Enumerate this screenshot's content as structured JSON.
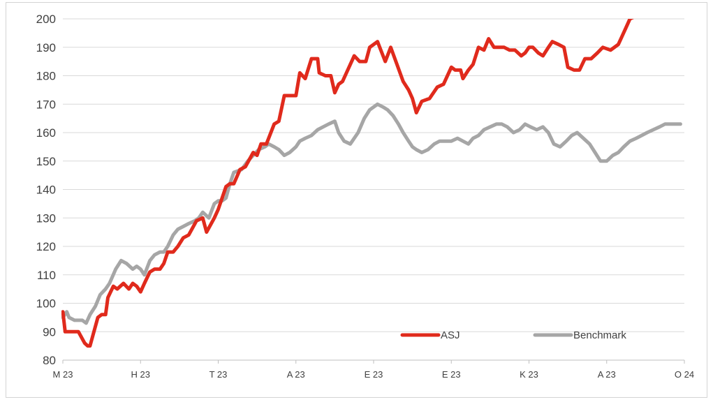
{
  "chart_data": {
    "type": "line",
    "title": "",
    "xlabel": "",
    "ylabel": "",
    "ylim": [
      80,
      200
    ],
    "yticks": [
      80,
      90,
      100,
      110,
      120,
      130,
      140,
      150,
      160,
      170,
      180,
      190,
      200
    ],
    "xtick_labels": [
      "M 23",
      "H 23",
      "T 23",
      "A 23",
      "E 23",
      "E 23",
      "K 23",
      "A 23",
      "O 24"
    ],
    "x_domain": [
      0,
      8
    ],
    "grid": "horizontal",
    "legend_position": "bottom-right",
    "series": [
      {
        "name": "ASJ",
        "color": "#e02a1c",
        "x": [
          0,
          0.03,
          0.12,
          0.2,
          0.28,
          0.32,
          0.35,
          0.45,
          0.5,
          0.55,
          0.58,
          0.65,
          0.7,
          0.78,
          0.85,
          0.9,
          0.95,
          1.0,
          1.05,
          1.12,
          1.18,
          1.25,
          1.3,
          1.35,
          1.42,
          1.48,
          1.55,
          1.62,
          1.72,
          1.8,
          1.85,
          1.95,
          2.0,
          2.1,
          2.15,
          2.2,
          2.28,
          2.35,
          2.45,
          2.5,
          2.55,
          2.62,
          2.72,
          2.78,
          2.85,
          2.92,
          3.0,
          3.05,
          3.12,
          3.2,
          3.28,
          3.3,
          3.38,
          3.45,
          3.5,
          3.55,
          3.6,
          3.65,
          3.75,
          3.82,
          3.9,
          3.95,
          4.05,
          4.15,
          4.22,
          4.3,
          4.38,
          4.45,
          4.5,
          4.55,
          4.62,
          4.72,
          4.82,
          4.9,
          5.0,
          5.05,
          5.12,
          5.15,
          5.22,
          5.28,
          5.35,
          5.42,
          5.48,
          5.55,
          5.62,
          5.68,
          5.75,
          5.82,
          5.9,
          5.95,
          6.0,
          6.05,
          6.12,
          6.18,
          6.25,
          6.3,
          6.38,
          6.45,
          6.5,
          6.58,
          6.65,
          6.72,
          6.8,
          6.88,
          6.95,
          7.05,
          7.15,
          7.2,
          7.25,
          7.3,
          7.38,
          7.45,
          7.55,
          7.65,
          7.72,
          7.78,
          7.82,
          7.88,
          7.95
        ],
        "y": [
          97,
          90,
          90,
          90,
          86,
          85,
          85,
          95,
          96,
          96,
          102,
          106,
          105,
          107,
          105,
          107,
          106,
          104,
          107,
          111,
          112,
          112,
          114,
          118,
          118,
          120,
          123,
          124,
          129,
          130,
          125,
          130,
          133,
          141,
          142,
          142,
          147,
          148,
          153,
          152,
          156,
          156,
          163,
          164,
          173,
          173,
          173,
          181,
          179,
          186,
          186,
          181,
          180,
          180,
          174,
          177,
          178,
          181,
          187,
          185,
          185,
          190,
          192,
          185,
          190,
          184,
          178,
          175,
          172,
          167,
          171,
          172,
          176,
          177,
          183,
          182,
          182,
          179,
          182,
          184,
          190,
          189,
          193,
          190,
          190,
          190,
          189,
          189,
          187,
          188,
          190,
          190,
          188,
          187,
          190,
          192,
          191,
          190,
          183,
          182,
          182,
          186,
          186,
          188,
          190,
          189,
          191,
          194,
          197,
          200,
          201,
          201,
          201,
          201,
          201,
          201,
          201,
          201,
          201
        ]
      },
      {
        "name": "Benchmark",
        "color": "#a6a6a6",
        "x": [
          0,
          0.05,
          0.08,
          0.15,
          0.25,
          0.3,
          0.35,
          0.42,
          0.48,
          0.55,
          0.6,
          0.68,
          0.75,
          0.82,
          0.9,
          0.95,
          1.0,
          1.05,
          1.12,
          1.18,
          1.25,
          1.3,
          1.35,
          1.42,
          1.48,
          1.55,
          1.62,
          1.7,
          1.75,
          1.8,
          1.88,
          1.95,
          2.0,
          2.05,
          2.1,
          2.15,
          2.2,
          2.3,
          2.38,
          2.45,
          2.52,
          2.6,
          2.65,
          2.72,
          2.78,
          2.85,
          2.92,
          3.0,
          3.05,
          3.12,
          3.2,
          3.28,
          3.35,
          3.42,
          3.5,
          3.55,
          3.62,
          3.7,
          3.8,
          3.88,
          3.95,
          4.05,
          4.12,
          4.18,
          4.25,
          4.32,
          4.38,
          4.45,
          4.5,
          4.55,
          4.62,
          4.7,
          4.78,
          4.85,
          4.92,
          5.0,
          5.08,
          5.15,
          5.22,
          5.28,
          5.35,
          5.42,
          5.5,
          5.58,
          5.65,
          5.72,
          5.8,
          5.88,
          5.95,
          6.02,
          6.1,
          6.18,
          6.25,
          6.32,
          6.4,
          6.48,
          6.55,
          6.62,
          6.7,
          6.78,
          6.85,
          6.92,
          7.0,
          7.08,
          7.15,
          7.22,
          7.3,
          7.38,
          7.45,
          7.52,
          7.6,
          7.68,
          7.75,
          7.82,
          7.88,
          7.95
        ],
        "y": [
          95,
          97,
          95,
          94,
          94,
          93,
          96,
          99,
          103,
          105,
          107,
          112,
          115,
          114,
          112,
          113,
          112,
          110,
          115,
          117,
          118,
          118,
          120,
          124,
          126,
          127,
          128,
          129,
          130,
          132,
          130,
          135,
          136,
          136,
          137,
          142,
          146,
          147,
          150,
          152,
          154,
          155,
          156,
          155,
          154,
          152,
          153,
          155,
          157,
          158,
          159,
          161,
          162,
          163,
          164,
          160,
          157,
          156,
          160,
          165,
          168,
          170,
          169,
          168,
          166,
          163,
          160,
          157,
          155,
          154,
          153,
          154,
          156,
          157,
          157,
          157,
          158,
          157,
          156,
          158,
          159,
          161,
          162,
          163,
          163,
          162,
          160,
          161,
          163,
          162,
          161,
          162,
          160,
          156,
          155,
          157,
          159,
          160,
          158,
          156,
          153,
          150,
          150,
          152,
          153,
          155,
          157,
          158,
          159,
          160,
          161,
          162,
          163,
          163,
          163,
          163
        ]
      }
    ]
  }
}
